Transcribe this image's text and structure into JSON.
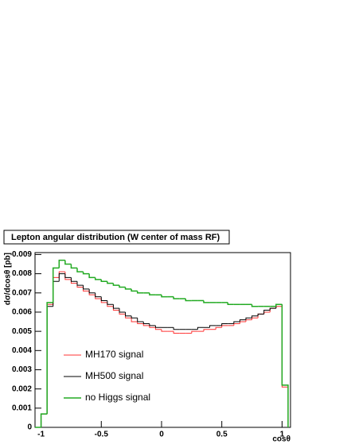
{
  "chart_data": {
    "type": "histogram",
    "title": "Lepton angular distribution (W center of mass RF)",
    "x_label": "cosθ",
    "y_label": "dσ/dcosθ [pb]",
    "bins": [
      -1.05,
      -1.0,
      -0.95,
      -0.9,
      -0.85,
      -0.8,
      -0.75,
      -0.7,
      -0.65,
      -0.6,
      -0.55,
      -0.5,
      -0.45,
      -0.4,
      -0.35,
      -0.3,
      -0.25,
      -0.2,
      -0.15,
      -0.1,
      -0.05,
      0,
      0.05,
      0.1,
      0.15,
      0.2,
      0.25,
      0.3,
      0.35,
      0.4,
      0.45,
      0.5,
      0.55,
      0.6,
      0.65,
      0.7,
      0.75,
      0.8,
      0.85,
      0.9,
      0.95,
      1.0,
      1.05
    ],
    "series": [
      {
        "name": "MH170 signal",
        "color": "#ff3333",
        "values": [
          0,
          0.0007,
          0.0064,
          0.0078,
          0.0081,
          0.0077,
          0.0075,
          0.0073,
          0.0071,
          0.0069,
          0.0067,
          0.0065,
          0.0063,
          0.0061,
          0.0059,
          0.0057,
          0.0055,
          0.0054,
          0.0053,
          0.0052,
          0.0051,
          0.005,
          0.005,
          0.0049,
          0.0049,
          0.0049,
          0.005,
          0.005,
          0.0051,
          0.0051,
          0.0052,
          0.0053,
          0.0053,
          0.0054,
          0.0055,
          0.0056,
          0.0057,
          0.0059,
          0.006,
          0.0062,
          0.0063,
          0.0021
        ]
      },
      {
        "name": "MH500 signal",
        "color": "#000000",
        "values": [
          0,
          0.0007,
          0.0063,
          0.0076,
          0.008,
          0.0078,
          0.0076,
          0.0074,
          0.0072,
          0.007,
          0.0068,
          0.0066,
          0.0064,
          0.0062,
          0.006,
          0.0058,
          0.0057,
          0.0055,
          0.0054,
          0.0053,
          0.0052,
          0.0052,
          0.0052,
          0.0051,
          0.0051,
          0.0051,
          0.0051,
          0.0052,
          0.0052,
          0.0053,
          0.0053,
          0.0054,
          0.0054,
          0.0055,
          0.0056,
          0.0057,
          0.0058,
          0.0059,
          0.0061,
          0.0062,
          0.0064,
          0.0022
        ]
      },
      {
        "name": "no Higgs signal",
        "color": "#22aa22",
        "values": [
          0,
          0.0007,
          0.0065,
          0.0083,
          0.0087,
          0.0085,
          0.0083,
          0.0081,
          0.008,
          0.0078,
          0.0077,
          0.0076,
          0.0075,
          0.0074,
          0.0073,
          0.0072,
          0.0071,
          0.007,
          0.007,
          0.0069,
          0.0069,
          0.0068,
          0.0068,
          0.0067,
          0.0067,
          0.0066,
          0.0066,
          0.0066,
          0.0065,
          0.0065,
          0.0065,
          0.0065,
          0.0064,
          0.0064,
          0.0064,
          0.0064,
          0.0063,
          0.0063,
          0.0063,
          0.0063,
          0.0064,
          0.0022
        ]
      }
    ],
    "xlim": [
      -1.05,
      1.07
    ],
    "xticks": [
      -1,
      -0.5,
      0,
      0.5,
      1
    ],
    "ylim": [
      0,
      0.0091
    ],
    "yticks": [
      0,
      0.001,
      0.002,
      0.003,
      0.004,
      0.005,
      0.006,
      0.007,
      0.008,
      0.009
    ],
    "grid": false
  }
}
